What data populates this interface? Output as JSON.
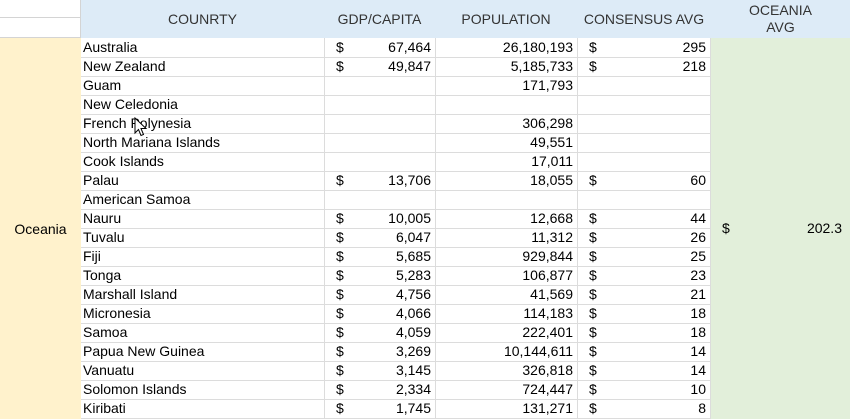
{
  "headers": {
    "country": "COUNRTY",
    "gdp": "GDP/CAPITA",
    "population": "POPULATION",
    "consensus": "CONSENSUS AVG",
    "oceania_avg_line1": "OCEANIA",
    "oceania_avg_line2": "AVG"
  },
  "region": "Oceania",
  "currency_symbol": "$",
  "oceania_avg": {
    "currency": "$",
    "value": "202.3"
  },
  "rows": [
    {
      "name": "Australia",
      "gdp_cur": "$",
      "gdp": "67,464",
      "population": "26,180,193",
      "cons_cur": "$",
      "consensus": "295"
    },
    {
      "name": "New Zealand",
      "gdp_cur": "$",
      "gdp": "49,847",
      "population": "5,185,733",
      "cons_cur": "$",
      "consensus": "218"
    },
    {
      "name": "Guam",
      "gdp_cur": "",
      "gdp": "",
      "population": "171,793",
      "cons_cur": "",
      "consensus": ""
    },
    {
      "name": "New Celedonia",
      "gdp_cur": "",
      "gdp": "",
      "population": "",
      "cons_cur": "",
      "consensus": ""
    },
    {
      "name": "French Polynesia",
      "gdp_cur": "",
      "gdp": "",
      "population": "306,298",
      "cons_cur": "",
      "consensus": ""
    },
    {
      "name": "North Mariana Islands",
      "gdp_cur": "",
      "gdp": "",
      "population": "49,551",
      "cons_cur": "",
      "consensus": ""
    },
    {
      "name": "Cook Islands",
      "gdp_cur": "",
      "gdp": "",
      "population": "17,011",
      "cons_cur": "",
      "consensus": ""
    },
    {
      "name": "Palau",
      "gdp_cur": "$",
      "gdp": "13,706",
      "population": "18,055",
      "cons_cur": "$",
      "consensus": "60"
    },
    {
      "name": "American Samoa",
      "gdp_cur": "",
      "gdp": "",
      "population": "",
      "cons_cur": "",
      "consensus": ""
    },
    {
      "name": "Nauru",
      "gdp_cur": "$",
      "gdp": "10,005",
      "population": "12,668",
      "cons_cur": "$",
      "consensus": "44"
    },
    {
      "name": "Tuvalu",
      "gdp_cur": "$",
      "gdp": "6,047",
      "population": "11,312",
      "cons_cur": "$",
      "consensus": "26"
    },
    {
      "name": "Fiji",
      "gdp_cur": "$",
      "gdp": "5,685",
      "population": "929,844",
      "cons_cur": "$",
      "consensus": "25"
    },
    {
      "name": "Tonga",
      "gdp_cur": "$",
      "gdp": "5,283",
      "population": "106,877",
      "cons_cur": "$",
      "consensus": "23"
    },
    {
      "name": "Marshall Island",
      "gdp_cur": "$",
      "gdp": "4,756",
      "population": "41,569",
      "cons_cur": "$",
      "consensus": "21"
    },
    {
      "name": "Micronesia",
      "gdp_cur": "$",
      "gdp": "4,066",
      "population": "114,183",
      "cons_cur": "$",
      "consensus": "18"
    },
    {
      "name": "Samoa",
      "gdp_cur": "$",
      "gdp": "4,059",
      "population": "222,401",
      "cons_cur": "$",
      "consensus": "18"
    },
    {
      "name": "Papua New Guinea",
      "gdp_cur": "$",
      "gdp": "3,269",
      "population": "10,144,611",
      "cons_cur": "$",
      "consensus": "14"
    },
    {
      "name": "Vanuatu",
      "gdp_cur": "$",
      "gdp": "3,145",
      "population": "326,818",
      "cons_cur": "$",
      "consensus": "14"
    },
    {
      "name": "Solomon Islands",
      "gdp_cur": "$",
      "gdp": "2,334",
      "population": "724,447",
      "cons_cur": "$",
      "consensus": "10"
    },
    {
      "name": "Kiribati",
      "gdp_cur": "$",
      "gdp": "1,745",
      "population": "131,271",
      "cons_cur": "$",
      "consensus": "8"
    }
  ],
  "colors": {
    "header_bg": "#ddebf7",
    "region_bg": "#fff2cc",
    "avg_bg": "#e2efda",
    "gridline": "#dcdcdc"
  },
  "icons": {
    "cursor": "mouse-pointer-icon"
  }
}
